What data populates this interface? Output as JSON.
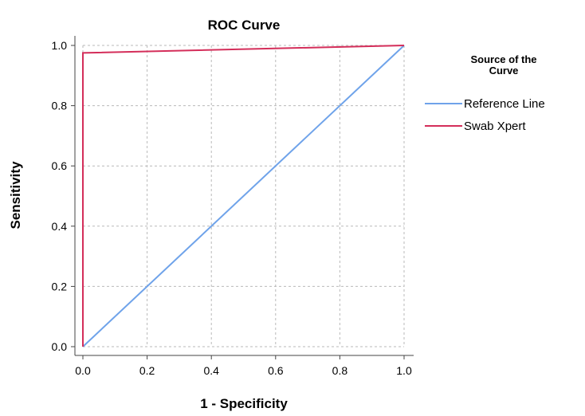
{
  "chart_data": {
    "type": "line",
    "title": "ROC Curve",
    "xlabel": "1 - Specificity",
    "ylabel": "Sensitivity",
    "xlim": [
      0,
      1
    ],
    "ylim": [
      0,
      1
    ],
    "x_ticks": [
      "0.0",
      "0.2",
      "0.4",
      "0.6",
      "0.8",
      "1.0"
    ],
    "y_ticks": [
      "0.0",
      "0.2",
      "0.4",
      "0.6",
      "0.8",
      "1.0"
    ],
    "grid": true,
    "legend": {
      "title_line1": "Source of the",
      "title_line2": "Curve",
      "placement": "right"
    },
    "series": [
      {
        "name": "Reference Line",
        "color": "#6fa3ea",
        "points": [
          [
            0,
            0
          ],
          [
            1,
            1
          ]
        ]
      },
      {
        "name": "Swab Xpert",
        "color": "#d42e5a",
        "points": [
          [
            0,
            0
          ],
          [
            0,
            0.975
          ],
          [
            1,
            1
          ]
        ]
      }
    ]
  }
}
